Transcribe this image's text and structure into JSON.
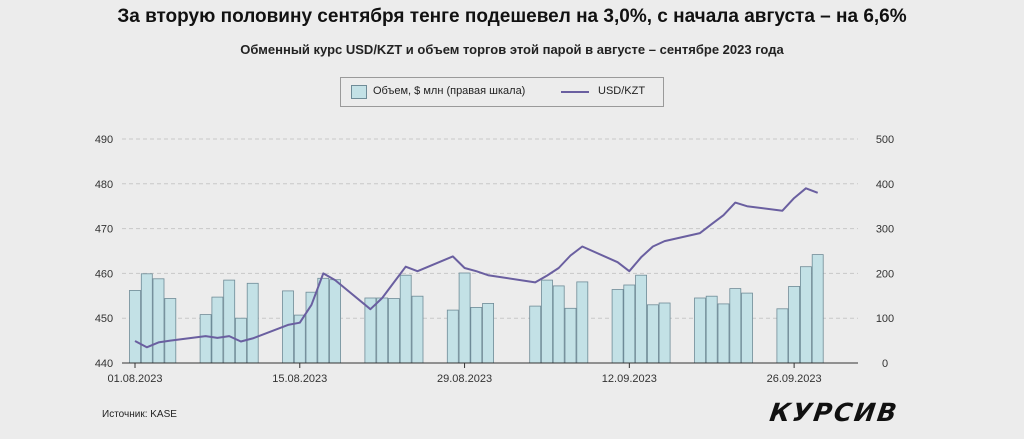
{
  "title": "За вторую половину сентября тенге подешевел на 3,0%, с начала августа – на 6,6%",
  "subtitle": "Обменный курс USD/KZT и объем торгов этой парой в августе – сентябре 2023 года",
  "source": "Источник: KASE",
  "logo": "КУРСИВ",
  "colors": {
    "bar_fill": "#c3e1e6",
    "bar_stroke": "#6f8b97",
    "line": "#6a5fa0",
    "grid": "#c8c8c8",
    "background": "#ececec"
  },
  "chart_data": {
    "type": "bar+line",
    "legend": {
      "placement": "top-center",
      "entries": [
        "Объем, $ млн (правая шкала)",
        "USD/KZT"
      ]
    },
    "grid": true,
    "x_ticks": [
      "01.08.2023",
      "15.08.2023",
      "29.08.2023",
      "12.09.2023",
      "26.09.2023"
    ],
    "left_axis": {
      "ylim": [
        440,
        490
      ],
      "ticks": [
        "490",
        "480",
        "470",
        "460",
        "450",
        "440"
      ]
    },
    "right_axis": {
      "ylim": [
        0,
        500
      ],
      "ticks": [
        "500",
        "400",
        "300",
        "200",
        "100",
        "0"
      ]
    },
    "x": [
      "2023-08-01",
      "2023-08-02",
      "2023-08-03",
      "2023-08-04",
      "2023-08-07",
      "2023-08-08",
      "2023-08-09",
      "2023-08-10",
      "2023-08-11",
      "2023-08-14",
      "2023-08-15",
      "2023-08-16",
      "2023-08-17",
      "2023-08-18",
      "2023-08-21",
      "2023-08-22",
      "2023-08-23",
      "2023-08-24",
      "2023-08-25",
      "2023-08-28",
      "2023-08-29",
      "2023-08-30",
      "2023-08-31",
      "2023-09-04",
      "2023-09-05",
      "2023-09-06",
      "2023-09-07",
      "2023-09-08",
      "2023-09-11",
      "2023-09-12",
      "2023-09-13",
      "2023-09-14",
      "2023-09-15",
      "2023-09-18",
      "2023-09-19",
      "2023-09-20",
      "2023-09-21",
      "2023-09-22",
      "2023-09-25",
      "2023-09-26",
      "2023-09-27",
      "2023-09-28"
    ],
    "series": [
      {
        "name": "Объем, $ млн (правая шкала)",
        "type": "bar",
        "values": [
          162,
          199,
          188,
          144,
          108,
          147,
          185,
          100,
          178,
          161,
          107,
          158,
          189,
          186,
          145,
          145,
          144,
          196,
          149,
          118,
          201,
          124,
          133,
          127,
          185,
          172,
          122,
          181,
          164,
          174,
          196,
          130,
          134,
          145,
          149,
          132,
          166,
          156,
          121,
          171,
          215,
          242
        ]
      },
      {
        "name": "USD/KZT",
        "type": "line",
        "values": [
          444.9,
          443.5,
          444.6,
          445.0,
          446.0,
          445.6,
          446.0,
          444.8,
          445.5,
          448.5,
          449.0,
          453.0,
          460.0,
          458.5,
          452.0,
          454.5,
          458.0,
          461.5,
          460.5,
          463.8,
          461.2,
          460.5,
          459.6,
          458.0,
          459.5,
          461.2,
          464.0,
          466.0,
          462.5,
          460.5,
          463.6,
          466.0,
          467.2,
          469.0,
          471.0,
          473.0,
          475.8,
          475.0,
          474.0,
          476.8,
          479.0,
          478.0
        ]
      }
    ]
  }
}
